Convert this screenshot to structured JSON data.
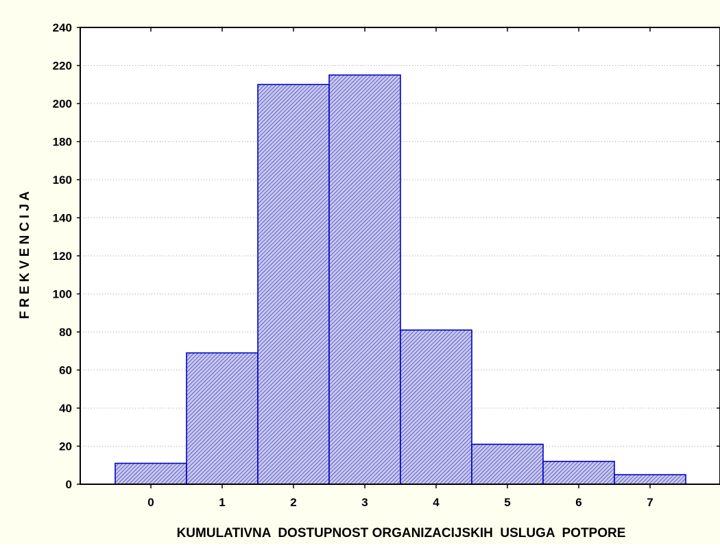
{
  "chart_data": {
    "type": "bar",
    "title": "",
    "xlabel": "KUMULATIVNA  DOSTUPNOST ORGANIZACIJSKIH  USLUGA  POTPORE",
    "ylabel": "F R E K V E N C I J A",
    "categories": [
      "0",
      "1",
      "2",
      "3",
      "4",
      "5",
      "6",
      "7"
    ],
    "values": [
      11,
      69,
      210,
      215,
      81,
      21,
      12,
      5
    ],
    "ylim": [
      0,
      240
    ],
    "yticks": [
      "0",
      "20",
      "40",
      "60",
      "80",
      "100",
      "120",
      "140",
      "160",
      "180",
      "200",
      "220",
      "240"
    ],
    "grid": true,
    "legend": "none",
    "bar_fill": "#C8C8EE",
    "bar_edge": "#0000C8",
    "hatch_color": "#2020B0",
    "background": "#FFFFF0",
    "plot_background": "#FFFFFF",
    "grid_color": "#A0A0A0"
  }
}
